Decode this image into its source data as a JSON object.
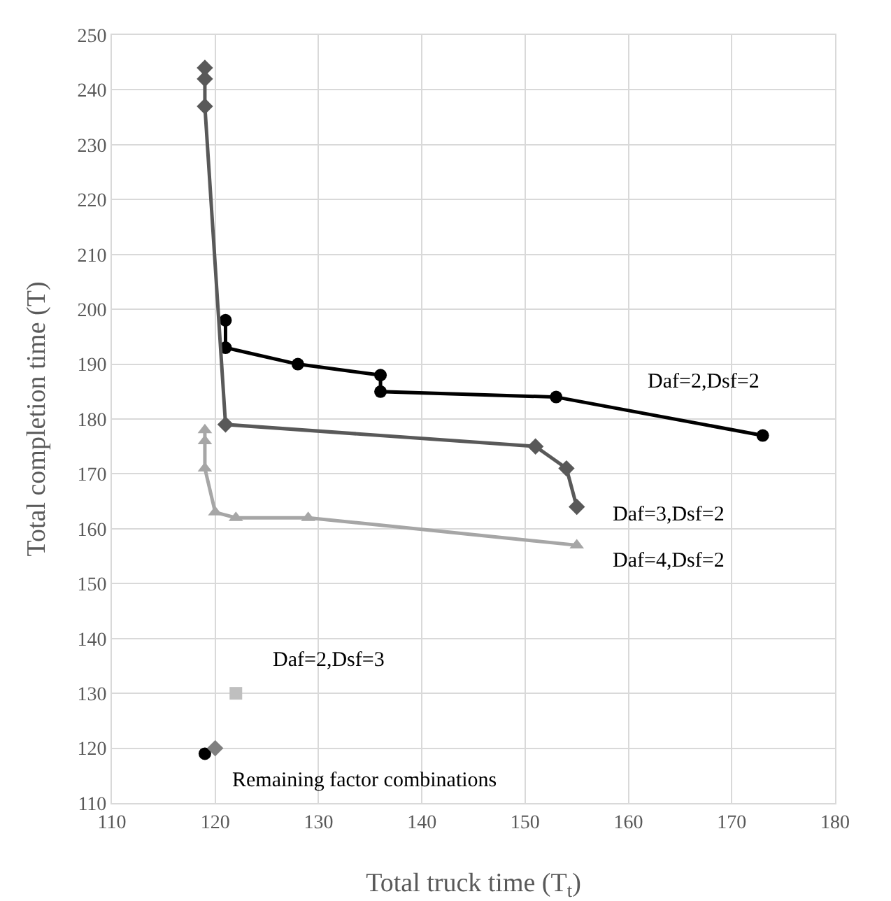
{
  "chart_data": {
    "type": "line",
    "xlabel": "Total truck time (T$_{t}$)",
    "ylabel": "Total completion time (T)",
    "xlim": [
      110,
      180
    ],
    "xticks": [
      110,
      120,
      130,
      140,
      150,
      160,
      170,
      180
    ],
    "ylim": [
      110,
      250
    ],
    "yticks": [
      110,
      120,
      130,
      140,
      150,
      160,
      170,
      180,
      190,
      200,
      210,
      220,
      230,
      240,
      250
    ],
    "grid": true,
    "legend": false,
    "series": [
      {
        "name": "Daf=2,Dsf=2",
        "color": "#000000",
        "marker": "circle",
        "x": [
          121,
          121,
          128,
          136,
          136,
          153,
          173
        ],
        "values": [
          198,
          193,
          190,
          188,
          185,
          184,
          177
        ]
      },
      {
        "name": "Daf=3,Dsf=2",
        "color": "#595959",
        "marker": "diamond",
        "x": [
          119,
          119,
          119,
          121,
          151,
          154,
          155
        ],
        "values": [
          244,
          242,
          237,
          179,
          175,
          171,
          164
        ]
      },
      {
        "name": "Daf=4,Dsf=2",
        "color": "#a6a6a6",
        "marker": "triangle",
        "x": [
          119,
          119,
          119,
          120,
          122,
          129,
          155
        ],
        "values": [
          178,
          176,
          171,
          163,
          162,
          162,
          157
        ]
      },
      {
        "name": "Daf=2,Dsf=3",
        "type": "scatter",
        "color": "#bfbfbf",
        "marker": "square",
        "x": [
          122
        ],
        "values": [
          130
        ]
      },
      {
        "name": "Remaining factor combinations",
        "type": "scatter",
        "color": "#000000",
        "marker": "circle",
        "x": [
          119
        ],
        "values": [
          119
        ]
      },
      {
        "type": "scatter",
        "color": "#7f7f7f",
        "marker": "diamond",
        "x": [
          120
        ],
        "values": [
          120
        ]
      }
    ]
  }
}
